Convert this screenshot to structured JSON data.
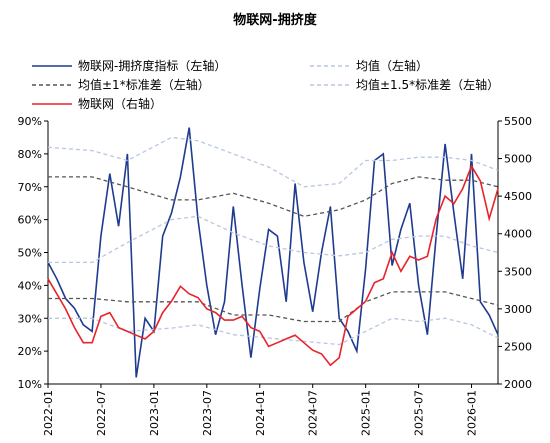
{
  "chart_data": {
    "type": "line",
    "title": "物联网-拥挤度",
    "x_ticks": [
      "2022-01",
      "2022-07",
      "2023-01",
      "2023-07",
      "2024-01",
      "2024-07",
      "2025-01",
      "2025-07",
      "2026-01"
    ],
    "left_axis": {
      "ticks": [
        "10%",
        "20%",
        "30%",
        "40%",
        "50%",
        "60%",
        "70%",
        "80%",
        "90%"
      ],
      "ylim": [
        0.1,
        0.9
      ]
    },
    "right_axis": {
      "ticks": [
        "2000",
        "2500",
        "3000",
        "3500",
        "4000",
        "4500",
        "5000",
        "5500"
      ],
      "ylim": [
        2000,
        5500
      ]
    },
    "grid": false,
    "legend_position": "top",
    "series": [
      {
        "name": "物联网-拥挤度指标（左轴）",
        "axis": "left",
        "color": "#1f3b8f",
        "style": "solid",
        "x": [
          "2022-01",
          "2022-02",
          "2022-03",
          "2022-04",
          "2022-05",
          "2022-06",
          "2022-07",
          "2022-08",
          "2022-09",
          "2022-10",
          "2022-11",
          "2022-12",
          "2023-01",
          "2023-02",
          "2023-03",
          "2023-04",
          "2023-05",
          "2023-06",
          "2023-07",
          "2023-08",
          "2023-09",
          "2023-10",
          "2023-11",
          "2023-12",
          "2024-01",
          "2024-02",
          "2024-03",
          "2024-04",
          "2024-05",
          "2024-06",
          "2024-07",
          "2024-08",
          "2024-09",
          "2024-10",
          "2024-11",
          "2024-12",
          "2025-01",
          "2025-02",
          "2025-03",
          "2025-04",
          "2025-05",
          "2025-06",
          "2025-07",
          "2025-08",
          "2025-09",
          "2025-10",
          "2025-11",
          "2025-12",
          "2026-01",
          "2026-02",
          "2026-03",
          "2026-04"
        ],
        "y": [
          0.47,
          0.42,
          0.36,
          0.33,
          0.28,
          0.26,
          0.55,
          0.74,
          0.58,
          0.8,
          0.12,
          0.3,
          0.26,
          0.55,
          0.62,
          0.73,
          0.88,
          0.6,
          0.4,
          0.25,
          0.35,
          0.64,
          0.4,
          0.18,
          0.39,
          0.57,
          0.55,
          0.35,
          0.71,
          0.47,
          0.32,
          0.5,
          0.64,
          0.3,
          0.26,
          0.2,
          0.45,
          0.78,
          0.8,
          0.46,
          0.57,
          0.65,
          0.4,
          0.25,
          0.55,
          0.83,
          0.62,
          0.42,
          0.8,
          0.35,
          0.31,
          0.25
        ]
      },
      {
        "name": "均值（左轴）",
        "axis": "left",
        "color": "#b8c7e0",
        "style": "dashed",
        "x": [
          "2022-01",
          "2022-06",
          "2022-10",
          "2023-03",
          "2023-06",
          "2023-10",
          "2024-02",
          "2024-06",
          "2024-10",
          "2025-01",
          "2025-04",
          "2025-07",
          "2025-10",
          "2026-01",
          "2026-04"
        ],
        "y": [
          0.47,
          0.47,
          0.53,
          0.6,
          0.61,
          0.56,
          0.52,
          0.5,
          0.49,
          0.5,
          0.54,
          0.55,
          0.55,
          0.52,
          0.5
        ]
      },
      {
        "name": "均值±1*标准差（左轴）",
        "axis": "left",
        "color": "#555555",
        "style": "dashed",
        "x": [
          "2022-01",
          "2022-06",
          "2022-10",
          "2023-03",
          "2023-06",
          "2023-10",
          "2024-02",
          "2024-06",
          "2024-10",
          "2025-01",
          "2025-04",
          "2025-07",
          "2025-10",
          "2026-01",
          "2026-04"
        ],
        "y": [
          0.73,
          0.73,
          0.7,
          0.66,
          0.66,
          0.68,
          0.65,
          0.61,
          0.63,
          0.66,
          0.71,
          0.73,
          0.72,
          0.72,
          0.7
        ],
        "y2": [
          0.36,
          0.36,
          0.35,
          0.35,
          0.35,
          0.31,
          0.31,
          0.29,
          0.29,
          0.35,
          0.38,
          0.38,
          0.38,
          0.36,
          0.34
        ]
      },
      {
        "name": "均值±1.5*标准差（左轴）",
        "axis": "left",
        "color": "#b8c7e0",
        "style": "dashed",
        "x": [
          "2022-01",
          "2022-06",
          "2022-10",
          "2023-03",
          "2023-06",
          "2023-10",
          "2024-02",
          "2024-06",
          "2024-10",
          "2025-01",
          "2025-04",
          "2025-07",
          "2025-10",
          "2026-01",
          "2026-04"
        ],
        "y": [
          0.82,
          0.81,
          0.78,
          0.85,
          0.84,
          0.8,
          0.76,
          0.7,
          0.71,
          0.78,
          0.78,
          0.79,
          0.79,
          0.78,
          0.75
        ],
        "y2": [
          0.3,
          0.3,
          0.26,
          0.27,
          0.28,
          0.25,
          0.24,
          0.23,
          0.22,
          0.26,
          0.3,
          0.29,
          0.3,
          0.28,
          0.24
        ]
      },
      {
        "name": "物联网（右轴）",
        "axis": "right",
        "color": "#e8242a",
        "style": "solid",
        "x": [
          "2022-01",
          "2022-02",
          "2022-03",
          "2022-04",
          "2022-05",
          "2022-06",
          "2022-07",
          "2022-08",
          "2022-09",
          "2022-10",
          "2022-11",
          "2022-12",
          "2023-01",
          "2023-02",
          "2023-03",
          "2023-04",
          "2023-05",
          "2023-06",
          "2023-07",
          "2023-08",
          "2023-09",
          "2023-10",
          "2023-11",
          "2023-12",
          "2024-01",
          "2024-02",
          "2024-03",
          "2024-04",
          "2024-05",
          "2024-06",
          "2024-07",
          "2024-08",
          "2024-09",
          "2024-10",
          "2024-11",
          "2024-12",
          "2025-01",
          "2025-02",
          "2025-03",
          "2025-04",
          "2025-05",
          "2025-06",
          "2025-07",
          "2025-08",
          "2025-09",
          "2025-10",
          "2025-11",
          "2025-12",
          "2026-01",
          "2026-02",
          "2026-03",
          "2026-04"
        ],
        "y": [
          3400,
          3200,
          3000,
          2750,
          2550,
          2550,
          2900,
          2950,
          2750,
          2700,
          2650,
          2600,
          2700,
          2950,
          3100,
          3300,
          3200,
          3150,
          3000,
          2950,
          2850,
          2850,
          2900,
          2750,
          2700,
          2500,
          2550,
          2600,
          2650,
          2550,
          2450,
          2400,
          2250,
          2350,
          2900,
          3000,
          3100,
          3350,
          3400,
          3750,
          3500,
          3700,
          3650,
          3700,
          4200,
          4500,
          4400,
          4600,
          4900,
          4700,
          4200,
          4600
        ]
      }
    ]
  }
}
